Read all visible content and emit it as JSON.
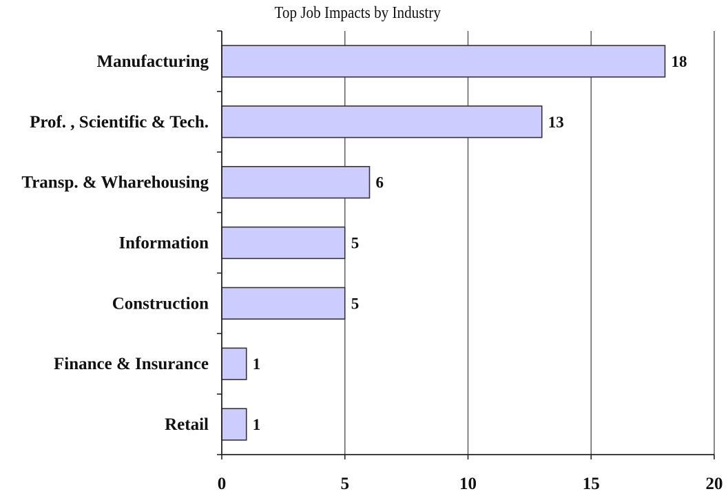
{
  "chart_data": {
    "type": "bar",
    "orientation": "horizontal",
    "title": "Top Job Impacts by Industry",
    "xlabel": "",
    "ylabel": "",
    "categories": [
      "Manufacturing",
      "Prof. , Scientific & Tech.",
      "Transp. & Wharehousing",
      "Information",
      "Construction",
      "Finance & Insurance",
      "Retail"
    ],
    "values": [
      18,
      13,
      6,
      5,
      5,
      1,
      1
    ],
    "data_labels": [
      "18",
      "13",
      "6",
      "5",
      "5",
      "1",
      "1"
    ],
    "xlim": [
      0,
      20
    ],
    "x_ticks": [
      0,
      5,
      10,
      15,
      20
    ],
    "x_tick_labels": [
      "0",
      "5",
      "10",
      "15",
      "20"
    ],
    "grid": "vertical",
    "legend": "none",
    "colors": {
      "bar_fill": "#ccccff",
      "bar_stroke": "#333333",
      "grid": "#555555",
      "axis": "#222222"
    }
  }
}
